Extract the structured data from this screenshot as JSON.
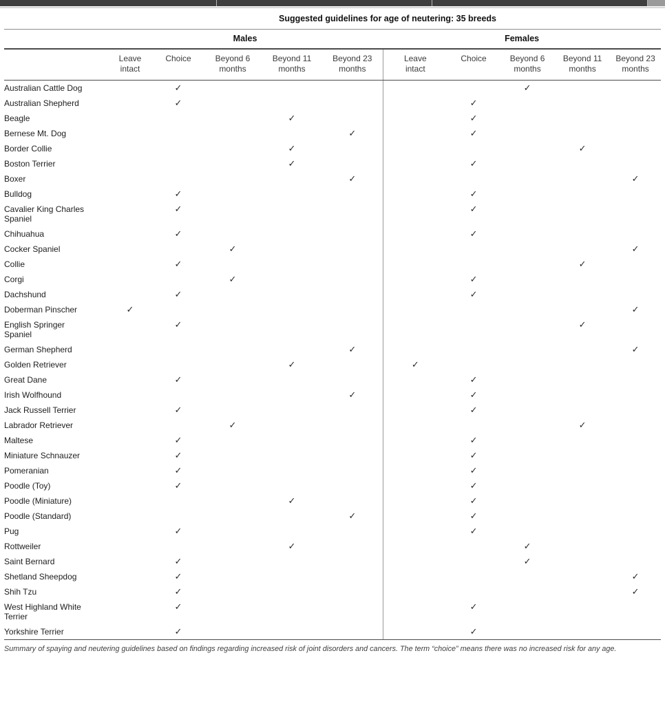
{
  "page": {
    "title": "Suggested guidelines for age of neutering: 35 breeds",
    "footnote": "Summary of spaying and neutering guidelines based on findings regarding increased risk of joint disorders and cancers. The term “choice” means there was no increased risk for any age."
  },
  "table": {
    "group_headers": {
      "males": "Males",
      "females": "Females"
    },
    "columns": [
      "Leave\nintact",
      "Choice",
      "Beyond 6\nmonths",
      "Beyond 11\nmonths",
      "Beyond 23\nmonths"
    ],
    "column_labels_flat": [
      "Leave intact",
      "Choice",
      "Beyond 6 months",
      "Beyond 11 months",
      "Beyond 23 months"
    ],
    "check_glyph": "✓",
    "rows": [
      {
        "breed": "Australian Cattle Dog",
        "males": "Choice",
        "females": "Beyond 6 months"
      },
      {
        "breed": "Australian Shepherd",
        "males": "Choice",
        "females": "Choice"
      },
      {
        "breed": "Beagle",
        "males": "Beyond 11 months",
        "females": "Choice"
      },
      {
        "breed": "Bernese Mt. Dog",
        "males": "Beyond 23 months",
        "females": "Choice"
      },
      {
        "breed": "Border Collie",
        "males": "Beyond 11 months",
        "females": "Beyond 11 months"
      },
      {
        "breed": "Boston Terrier",
        "males": "Beyond 11 months",
        "females": "Choice"
      },
      {
        "breed": "Boxer",
        "males": "Beyond 23 months",
        "females": "Beyond 23 months"
      },
      {
        "breed": "Bulldog",
        "males": "Choice",
        "females": "Choice"
      },
      {
        "breed": "Cavalier King Charles\nSpaniel",
        "males": "Choice",
        "females": "Choice"
      },
      {
        "breed": "Chihuahua",
        "males": "Choice",
        "females": "Choice"
      },
      {
        "breed": "Cocker Spaniel",
        "males": "Beyond 6 months",
        "females": "Beyond 23 months"
      },
      {
        "breed": "Collie",
        "males": "Choice",
        "females": "Beyond 11 months"
      },
      {
        "breed": "Corgi",
        "males": "Beyond 6 months",
        "females": "Choice"
      },
      {
        "breed": "Dachshund",
        "males": "Choice",
        "females": "Choice"
      },
      {
        "breed": "Doberman Pinscher",
        "males": "Leave intact",
        "females": "Beyond 23 months"
      },
      {
        "breed": "English Springer\nSpaniel",
        "males": "Choice",
        "females": "Beyond 11 months"
      },
      {
        "breed": "German Shepherd",
        "males": "Beyond 23 months",
        "females": "Beyond 23 months"
      },
      {
        "breed": "Golden Retriever",
        "males": "Beyond 11 months",
        "females": "Leave intact"
      },
      {
        "breed": "Great Dane",
        "males": "Choice",
        "females": "Choice"
      },
      {
        "breed": "Irish Wolfhound",
        "males": "Beyond 23 months",
        "females": "Choice"
      },
      {
        "breed": "Jack Russell Terrier",
        "males": "Choice",
        "females": "Choice"
      },
      {
        "breed": "Labrador Retriever",
        "males": "Beyond 6 months",
        "females": "Beyond 11 months"
      },
      {
        "breed": "Maltese",
        "males": "Choice",
        "females": "Choice"
      },
      {
        "breed": "Miniature Schnauzer",
        "males": "Choice",
        "females": "Choice"
      },
      {
        "breed": "Pomeranian",
        "males": "Choice",
        "females": "Choice"
      },
      {
        "breed": "Poodle (Toy)",
        "males": "Choice",
        "females": "Choice"
      },
      {
        "breed": "Poodle (Miniature)",
        "males": "Beyond 11 months",
        "females": "Choice"
      },
      {
        "breed": "Poodle (Standard)",
        "males": "Beyond 23 months",
        "females": "Choice"
      },
      {
        "breed": "Pug",
        "males": "Choice",
        "females": "Choice"
      },
      {
        "breed": "Rottweiler",
        "males": "Beyond 11 months",
        "females": "Beyond 6 months"
      },
      {
        "breed": "Saint Bernard",
        "males": "Choice",
        "females": "Beyond 6 months"
      },
      {
        "breed": "Shetland Sheepdog",
        "males": "Choice",
        "females": "Beyond 23 months"
      },
      {
        "breed": "Shih Tzu",
        "males": "Choice",
        "females": "Beyond 23 months"
      },
      {
        "breed": "West Highland White\nTerrier",
        "males": "Choice",
        "females": "Choice"
      },
      {
        "breed": "Yorkshire Terrier",
        "males": "Choice",
        "females": "Choice"
      }
    ]
  },
  "colors": {
    "chrome_bar": "#3f3f3f",
    "rule_dark": "#4a4a4a",
    "rule_light": "#8c8c8c",
    "text": "#222222",
    "footnote_text": "#3f3f3f"
  }
}
